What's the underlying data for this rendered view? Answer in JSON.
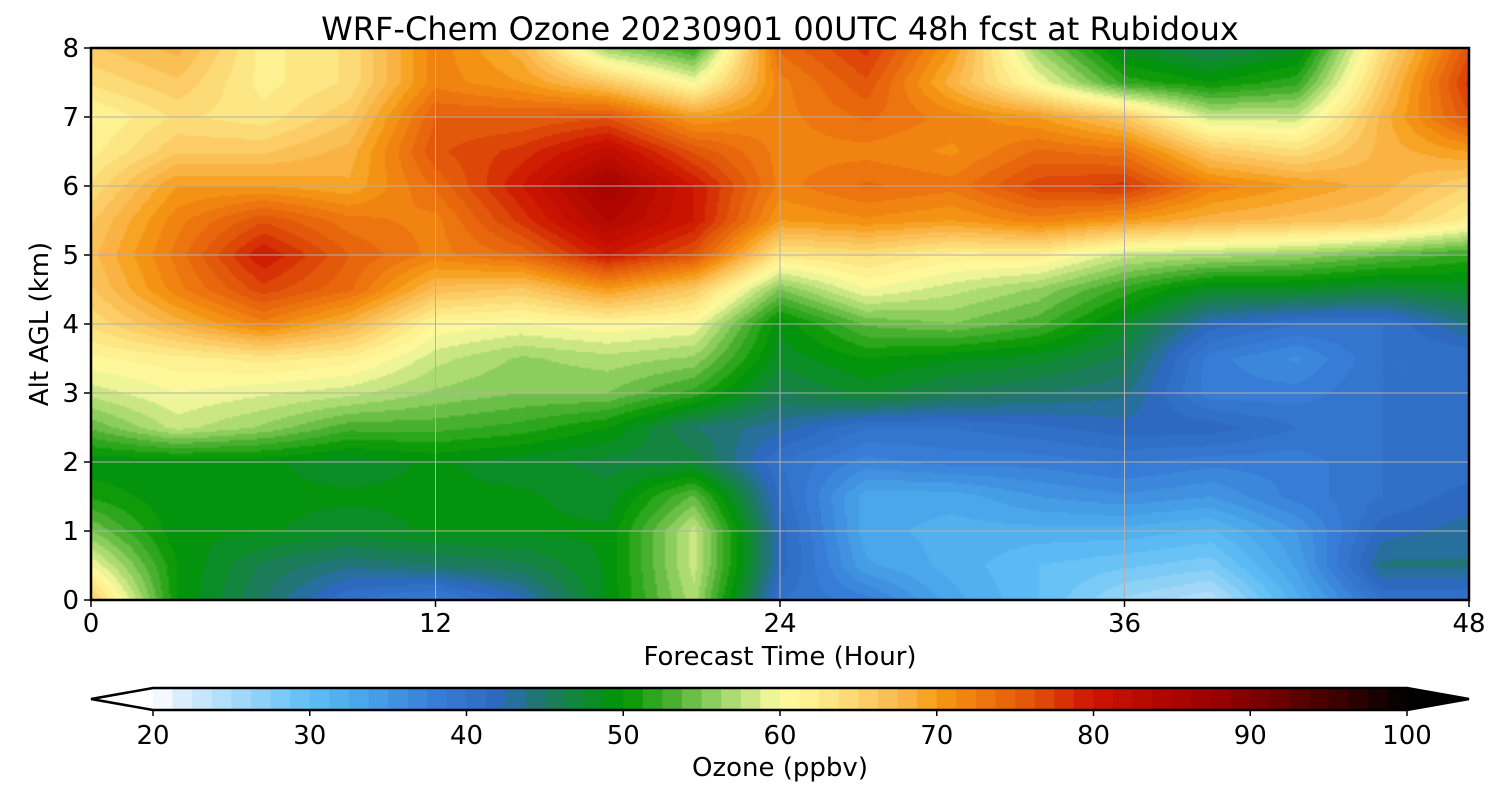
{
  "chart_data": {
    "type": "heatmap",
    "title": "WRF-Chem Ozone  20230901 00UTC 48h fcst at Rubidoux",
    "xlabel": "Forecast Time (Hour)",
    "ylabel": "Alt AGL (km)",
    "xlim": [
      0,
      48
    ],
    "ylim": [
      0,
      8
    ],
    "xticks": [
      0,
      12,
      24,
      36,
      48
    ],
    "yticks": [
      0,
      1,
      2,
      3,
      4,
      5,
      6,
      7,
      8
    ],
    "grid": true,
    "colorbar": {
      "label": "Ozone  (ppbv)",
      "min": 20,
      "max": 100,
      "ticks": [
        20,
        30,
        40,
        50,
        60,
        70,
        80,
        90,
        100
      ],
      "extend": "both",
      "orientation": "horizontal"
    },
    "x": [
      0,
      3,
      6,
      9,
      12,
      15,
      18,
      21,
      24,
      27,
      30,
      33,
      36,
      39,
      42,
      45,
      48
    ],
    "y": [
      0,
      0.5,
      1,
      1.5,
      2,
      2.5,
      3,
      3.5,
      4,
      4.5,
      5,
      5.5,
      6,
      6.5,
      7,
      7.5,
      8
    ],
    "z": [
      [
        66,
        50,
        45,
        40,
        38,
        42,
        49,
        57,
        40,
        38,
        33,
        30,
        26,
        24,
        32,
        40,
        40
      ],
      [
        60,
        50,
        46,
        44,
        45,
        46,
        49,
        58,
        42,
        34,
        32,
        30,
        29,
        28,
        34,
        44,
        44
      ],
      [
        55,
        49,
        49,
        48,
        49,
        49,
        49,
        58,
        42,
        33,
        32,
        32,
        32,
        31,
        35,
        42,
        43
      ],
      [
        51,
        49,
        49,
        49,
        49,
        49,
        48,
        54,
        41,
        33,
        33,
        35,
        36,
        35,
        38,
        40,
        42
      ],
      [
        49,
        49,
        49,
        48,
        49,
        48,
        47,
        47,
        40,
        37,
        38,
        38,
        39,
        38,
        38,
        40,
        40
      ],
      [
        54,
        58,
        56,
        53,
        53,
        52,
        50,
        45,
        43,
        40,
        40,
        41,
        42,
        42,
        40,
        40,
        41
      ],
      [
        58,
        60,
        59,
        58,
        56,
        55,
        55,
        52,
        46,
        48,
        46,
        45,
        44,
        38,
        38,
        40,
        40
      ],
      [
        61,
        62,
        63,
        62,
        58,
        56,
        57,
        56,
        48,
        50,
        49,
        48,
        46,
        38,
        36,
        40,
        40
      ],
      [
        64,
        68,
        72,
        68,
        61,
        60,
        61,
        60,
        49,
        54,
        55,
        53,
        48,
        42,
        40,
        40,
        44
      ],
      [
        66,
        72,
        77,
        74,
        67,
        66,
        70,
        66,
        55,
        60,
        58,
        56,
        52,
        48,
        48,
        47,
        48
      ],
      [
        67,
        73,
        80,
        75,
        72,
        74,
        80,
        76,
        63,
        64,
        62,
        62,
        58,
        57,
        56,
        54,
        52
      ],
      [
        66,
        72,
        76,
        73,
        72,
        78,
        84,
        80,
        70,
        71,
        70,
        72,
        70,
        68,
        67,
        66,
        62
      ],
      [
        64,
        70,
        70,
        69,
        74,
        80,
        86,
        80,
        72,
        74,
        73,
        77,
        78,
        72,
        70,
        68,
        65
      ],
      [
        62,
        66,
        66,
        68,
        76,
        78,
        82,
        76,
        72,
        72,
        71,
        74,
        73,
        66,
        64,
        68,
        70
      ],
      [
        61,
        64,
        63,
        66,
        75,
        75,
        76,
        70,
        72,
        74,
        72,
        70,
        66,
        58,
        58,
        68,
        76
      ],
      [
        64,
        66,
        62,
        64,
        72,
        70,
        66,
        60,
        72,
        76,
        68,
        60,
        52,
        50,
        52,
        66,
        78
      ],
      [
        66,
        68,
        62,
        64,
        72,
        68,
        56,
        52,
        74,
        78,
        70,
        56,
        48,
        46,
        48,
        64,
        76
      ]
    ]
  }
}
